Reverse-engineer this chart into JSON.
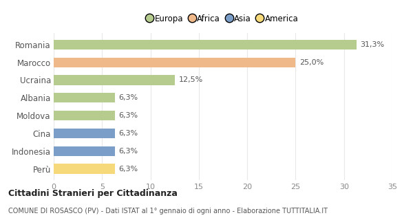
{
  "categories": [
    "Romania",
    "Marocco",
    "Ucraina",
    "Albania",
    "Moldova",
    "Cina",
    "Indonesia",
    "Perù"
  ],
  "values": [
    31.3,
    25.0,
    12.5,
    6.3,
    6.3,
    6.3,
    6.3,
    6.3
  ],
  "labels": [
    "31,3%",
    "25,0%",
    "12,5%",
    "6,3%",
    "6,3%",
    "6,3%",
    "6,3%",
    "6,3%"
  ],
  "colors": [
    "#b5cc8e",
    "#f0b989",
    "#b5cc8e",
    "#b5cc8e",
    "#b5cc8e",
    "#7b9ec9",
    "#7b9ec9",
    "#f6d97a"
  ],
  "legend_labels": [
    "Europa",
    "Africa",
    "Asia",
    "America"
  ],
  "legend_colors": [
    "#b5cc8e",
    "#f0b989",
    "#7b9ec9",
    "#f6d97a"
  ],
  "title": "Cittadini Stranieri per Cittadinanza",
  "subtitle": "COMUNE DI ROSASCO (PV) - Dati ISTAT al 1° gennaio di ogni anno - Elaborazione TUTTITALIA.IT",
  "xlim": [
    0,
    35
  ],
  "xticks": [
    0,
    5,
    10,
    15,
    20,
    25,
    30,
    35
  ],
  "background_color": "#ffffff",
  "grid_color": "#e8e8e8",
  "bar_height": 0.55
}
